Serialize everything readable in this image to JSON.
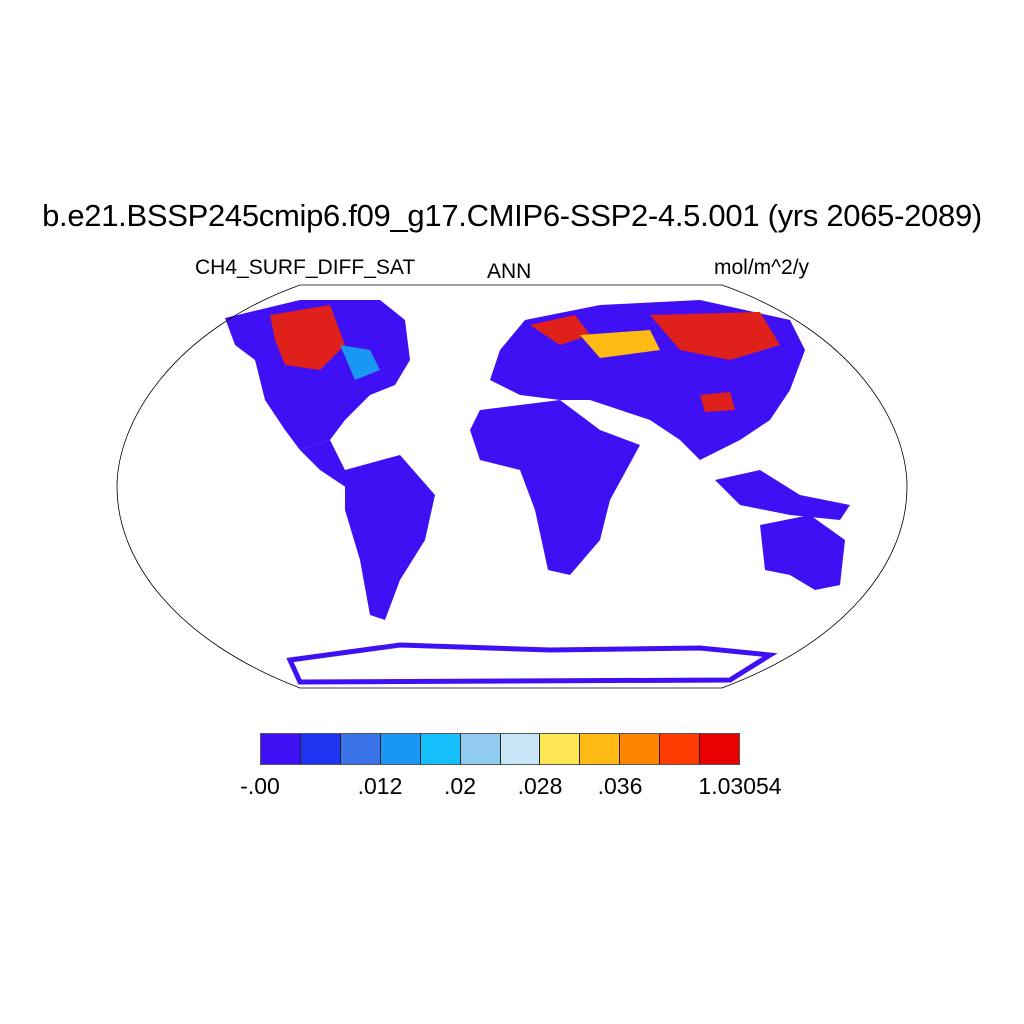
{
  "title": "b.e21.BSSP245cmip6.f09_g17.CMIP6-SSP2-4.5.001 (yrs 2065-2089)",
  "left_string": "CH4_SURF_DIFF_SAT",
  "center_string": "ANN",
  "right_string": "mol/m^2/y",
  "projection": "Robinson",
  "colorbar": {
    "colors": [
      "#4010f5",
      "#1e34f0",
      "#3a72e8",
      "#1a96f5",
      "#16c0fc",
      "#90ccf0",
      "#c8e6f8",
      "#ffe655",
      "#ffbb14",
      "#ff8500",
      "#ff3b00",
      "#e80000",
      "#d42a2a"
    ],
    "labels": [
      "-.00",
      ".012",
      ".02",
      ".028",
      ".036",
      "1.03054"
    ],
    "label_boundaries": [
      0,
      3,
      5,
      7,
      9,
      12
    ]
  }
}
